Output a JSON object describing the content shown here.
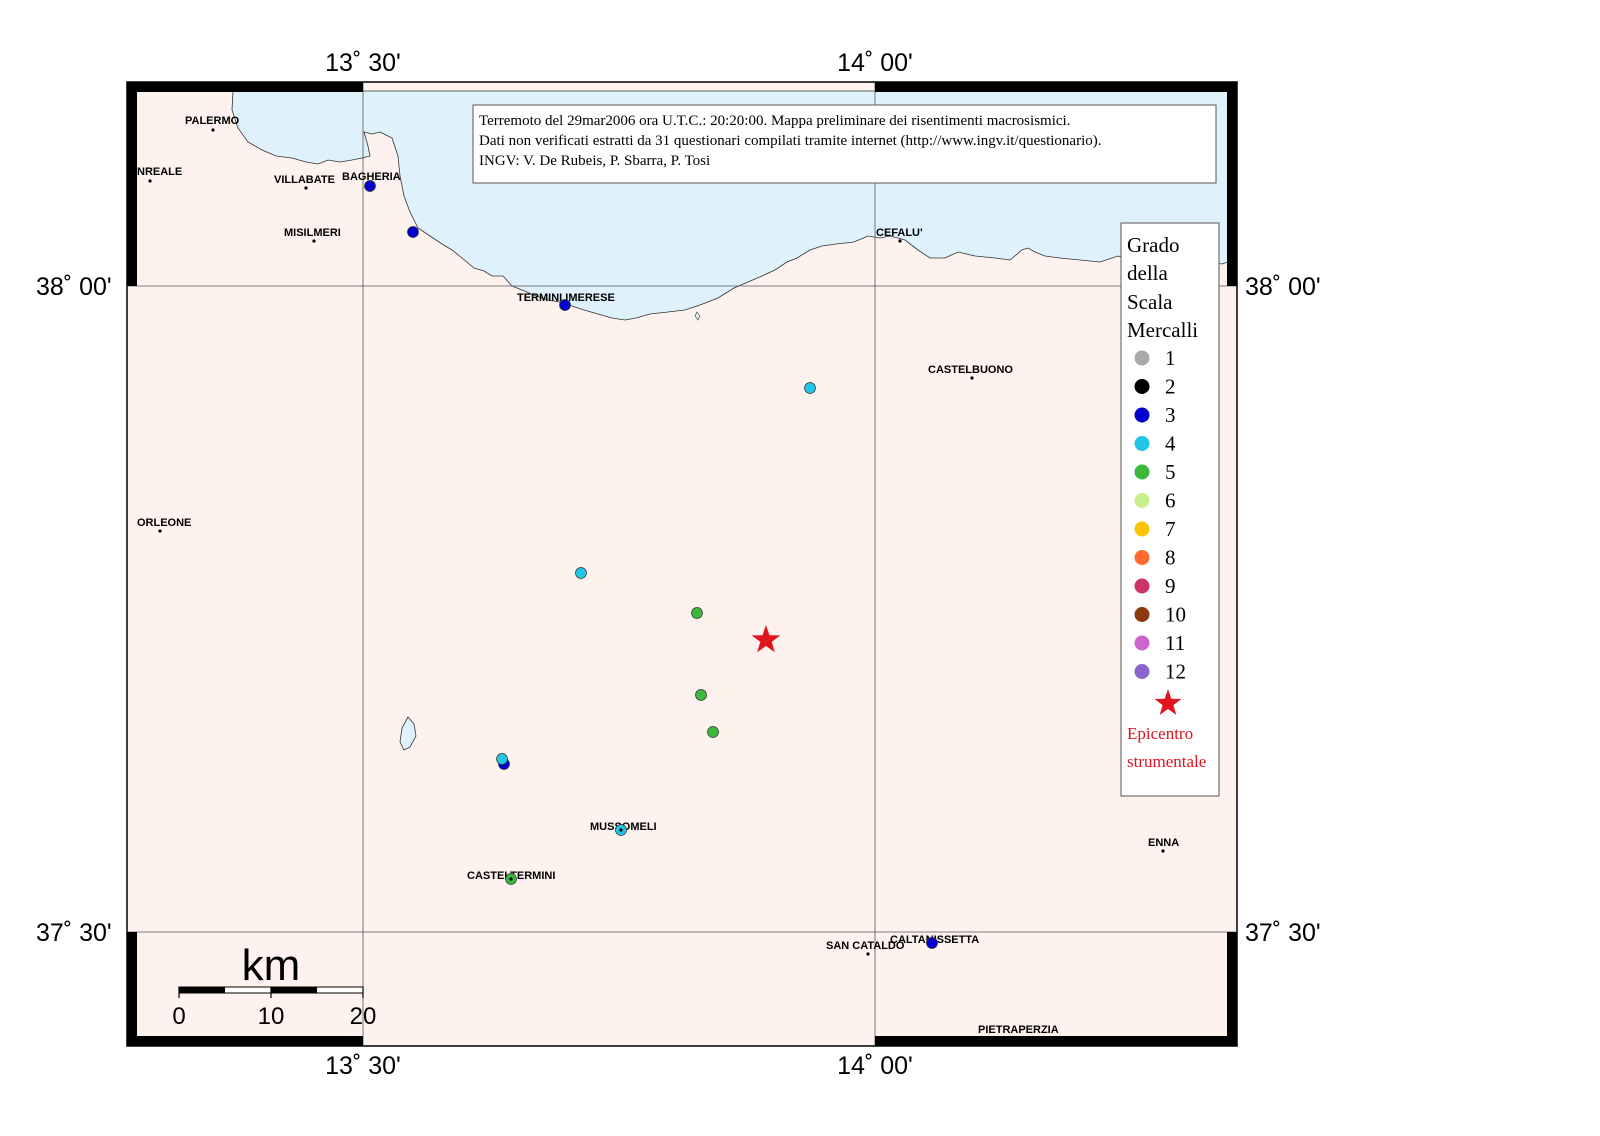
{
  "axes": {
    "lon_labels": [
      "13˚ 30'",
      "14˚ 00'"
    ],
    "lat_labels": [
      "38˚ 00'",
      "37˚ 30'"
    ]
  },
  "info_box": {
    "line1": "Terremoto del 29mar2006 ora U.T.C.: 20:20:00.  Mappa preliminare dei risentimenti macrosismici.",
    "line2": "Dati non verificati estratti da 31 questionari compilati tramite internet (http://www.ingv.it/questionario).",
    "line3": "INGV: V.  De Rubeis, P.  Sbarra, P.  Tosi"
  },
  "legend": {
    "title": [
      "Grado",
      "della",
      "Scala",
      "Mercalli"
    ],
    "grades": [
      {
        "label": "1",
        "color": "#aaaaaa"
      },
      {
        "label": "2",
        "color": "#000000"
      },
      {
        "label": "3",
        "color": "#0000cc"
      },
      {
        "label": "4",
        "color": "#22c4e8"
      },
      {
        "label": "5",
        "color": "#3cb83c"
      },
      {
        "label": "6",
        "color": "#c8f08a"
      },
      {
        "label": "7",
        "color": "#ffc400"
      },
      {
        "label": "8",
        "color": "#ff6a30"
      },
      {
        "label": "9",
        "color": "#cc3366"
      },
      {
        "label": "10",
        "color": "#8b3a0f"
      },
      {
        "label": "11",
        "color": "#cc66cc"
      },
      {
        "label": "12",
        "color": "#8866cc"
      }
    ],
    "epicenter_label": [
      "Epicentro",
      "strumentale"
    ],
    "epicenter_color": "#e0141e"
  },
  "scale_bar": {
    "unit": "km",
    "ticks": [
      "0",
      "10",
      "20"
    ]
  },
  "places": [
    {
      "name": "PALERMO"
    },
    {
      "name": "NREALE"
    },
    {
      "name": "VILLABATE"
    },
    {
      "name": "BAGHERIA"
    },
    {
      "name": "MISILMERI"
    },
    {
      "name": "TERMINI IMERESE"
    },
    {
      "name": "CEFALU'"
    },
    {
      "name": "CASTELBUONO"
    },
    {
      "name": "ORLEONE"
    },
    {
      "name": "MUSSOMELI"
    },
    {
      "name": "CASTELTERMINI"
    },
    {
      "name": "ENNA"
    },
    {
      "name": "SAN CATALDO"
    },
    {
      "name": "CALTANISSETTA"
    },
    {
      "name": "PIETRAPERZIA"
    }
  ],
  "observations": [
    {
      "grade": 3,
      "color": "#0000cc"
    },
    {
      "grade": 3,
      "color": "#0000cc"
    },
    {
      "grade": 3,
      "color": "#0000cc"
    },
    {
      "grade": 4,
      "color": "#22c4e8"
    },
    {
      "grade": 4,
      "color": "#22c4e8"
    },
    {
      "grade": 5,
      "color": "#3cb83c"
    },
    {
      "grade": 5,
      "color": "#3cb83c"
    },
    {
      "grade": 5,
      "color": "#3cb83c"
    },
    {
      "grade": 3,
      "color": "#0000cc"
    },
    {
      "grade": 4,
      "color": "#22c4e8"
    },
    {
      "grade": 4,
      "color": "#22c4e8"
    },
    {
      "grade": 5,
      "color": "#3cb83c"
    },
    {
      "grade": 3,
      "color": "#0000cc"
    }
  ],
  "colors": {
    "land": "#fdf2ee",
    "sea": "#dff1fb",
    "epicenter": "#e0141e"
  }
}
